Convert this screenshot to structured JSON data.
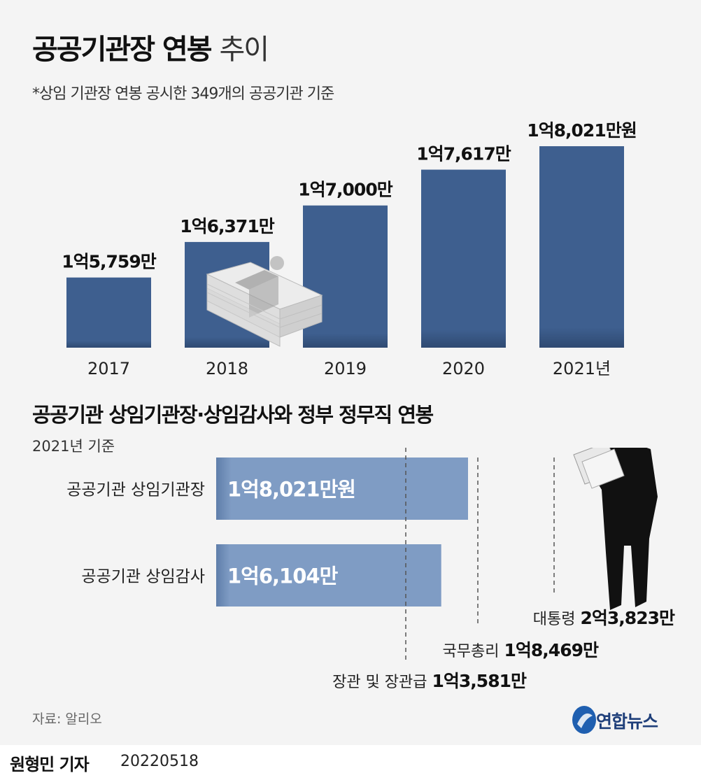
{
  "title_bold": "공공기관장 연봉",
  "title_light": "추이",
  "subtitle": "*상임 기관장 연봉 공시한 349개의 공공기관 기준",
  "section2_title": "공공기관 상임기관장·상임감사와 정부 정무직 연봉",
  "section2_sub": "2021년 기준",
  "source": "자료: 알리오",
  "logo": "연합뉴스",
  "reporter": "원형민 기자",
  "date": "20220518",
  "colors": {
    "bar_dark": "#3e5f8f",
    "bar_light": "#7f9cc4",
    "background": "#f4f4f4"
  },
  "chart_data": [
    {
      "type": "bar",
      "categories": [
        "2017",
        "2018",
        "2019",
        "2020",
        "2021년"
      ],
      "values": [
        15759,
        16371,
        17000,
        17617,
        18021
      ],
      "unit": "만원",
      "data_labels": [
        "1억5,759만",
        "1억6,371만",
        "1억7,000만",
        "1억7,617만",
        "1억8,021만원"
      ],
      "illustration": "money-stack-icon"
    },
    {
      "type": "bar",
      "orientation": "horizontal",
      "categories": [
        "공공기관 상임기관장",
        "공공기관 상임감사"
      ],
      "values": [
        18021,
        16104
      ],
      "unit": "만원",
      "data_labels": [
        "1억8,021만원",
        "1억6,104만"
      ],
      "reference_lines": [
        {
          "label": "장관 및 장관급",
          "value_label": "1억3,581만",
          "value": 13581
        },
        {
          "label": "국무총리",
          "value_label": "1억8,469만",
          "value": 18469
        },
        {
          "label": "대통령",
          "value_label": "2억3,823만",
          "value": 23823
        }
      ],
      "illustration": "businessman-silhouette-icon"
    }
  ]
}
